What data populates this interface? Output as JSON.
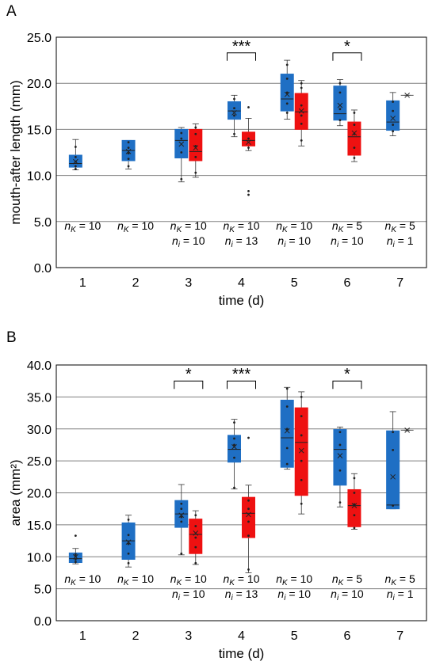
{
  "colors": {
    "blue": "#1f6fc4",
    "red": "#ee1111",
    "grid": "#7f7f7f",
    "frame": "#000000"
  },
  "chart_data": [
    {
      "panel": "A",
      "type": "box",
      "xlabel": "time (d)",
      "ylabel": "mouth-after length (mm)",
      "ylim": [
        0,
        25
      ],
      "yticks": [
        "0.0",
        "5.0",
        "10.0",
        "15.0",
        "20.0",
        "25.0"
      ],
      "categories": [
        "1",
        "2",
        "3",
        "4",
        "5",
        "6",
        "7"
      ],
      "series": [
        {
          "color": "blue",
          "boxes": [
            {
              "x": 1,
              "min": 10.6,
              "q1": 10.9,
              "median": 11.3,
              "mean": 11.5,
              "q3": 12.2,
              "max": 13.9,
              "points": [
                10.7,
                11.0,
                11.5,
                12.0,
                13.1
              ]
            },
            {
              "x": 2,
              "min": 10.7,
              "q1": 11.6,
              "median": 12.7,
              "mean": 12.6,
              "q3": 13.8,
              "max": 13.8,
              "points": [
                11.0,
                11.8,
                12.4,
                13.0,
                13.6
              ]
            },
            {
              "x": 3,
              "min": 9.3,
              "q1": 11.9,
              "median": 13.8,
              "mean": 13.4,
              "q3": 15.0,
              "max": 15.2,
              "points": [
                9.6,
                12.5,
                14.0,
                14.6
              ]
            },
            {
              "x": 4,
              "min": 14.2,
              "q1": 16.1,
              "median": 17.0,
              "mean": 16.8,
              "q3": 18.0,
              "max": 18.7,
              "points": [
                14.5,
                16.5,
                17.3,
                18.3
              ]
            },
            {
              "x": 5,
              "min": 16.1,
              "q1": 17.0,
              "median": 18.3,
              "mean": 18.8,
              "q3": 21.0,
              "max": 22.5,
              "points": [
                16.8,
                17.8,
                19.0,
                20.5,
                22.0
              ]
            },
            {
              "x": 6,
              "min": 15.4,
              "q1": 16.0,
              "median": 16.7,
              "mean": 17.6,
              "q3": 19.7,
              "max": 20.4,
              "points": [
                16.0,
                17.2,
                19.0,
                20.0
              ]
            },
            {
              "x": 7,
              "min": 14.3,
              "q1": 14.9,
              "median": 15.8,
              "mean": 16.2,
              "q3": 18.1,
              "max": 19.0,
              "points": [
                14.8,
                15.5,
                17.0,
                18.0
              ]
            }
          ]
        },
        {
          "color": "red",
          "boxes": [
            {
              "x": 3,
              "min": 9.8,
              "q1": 11.6,
              "median": 12.6,
              "mean": 13.0,
              "q3": 15.0,
              "max": 15.6,
              "points": [
                10.3,
                12.0,
                13.2,
                14.5,
                15.2
              ]
            },
            {
              "x": 4,
              "min": 12.7,
              "q1": 13.2,
              "median": 13.8,
              "mean": 13.6,
              "q3": 14.7,
              "max": 16.2,
              "points": [
                7.9,
                8.3,
                13.0,
                14.0,
                17.4
              ]
            },
            {
              "x": 5,
              "min": 13.2,
              "q1": 15.0,
              "median": 16.9,
              "mean": 17.0,
              "q3": 18.9,
              "max": 20.3,
              "points": [
                13.8,
                15.6,
                16.5,
                17.6,
                19.5,
                20.0
              ]
            },
            {
              "x": 6,
              "min": 11.5,
              "q1": 12.2,
              "median": 14.2,
              "mean": 14.6,
              "q3": 15.8,
              "max": 17.1,
              "points": [
                11.9,
                13.0,
                14.5,
                15.5,
                16.8
              ]
            },
            {
              "x": 7,
              "min": 18.7,
              "q1": 18.7,
              "median": 18.7,
              "mean": 18.7,
              "q3": 18.7,
              "max": 18.7,
              "points": []
            }
          ]
        }
      ],
      "n_labels": [
        {
          "x": 1,
          "k": "10",
          "i": ""
        },
        {
          "x": 2,
          "k": "10",
          "i": ""
        },
        {
          "x": 3,
          "k": "10",
          "i": "10"
        },
        {
          "x": 4,
          "k": "10",
          "i": "13"
        },
        {
          "x": 5,
          "k": "10",
          "i": "10"
        },
        {
          "x": 6,
          "k": " 5",
          "i": "10"
        },
        {
          "x": 7,
          "k": " 5",
          "i": " 1"
        }
      ],
      "significance": [
        {
          "x": 4,
          "label": "***",
          "y": 23.3
        },
        {
          "x": 6,
          "label": "*",
          "y": 23.3
        }
      ]
    },
    {
      "panel": "B",
      "type": "box",
      "xlabel": "time (d)",
      "ylabel": "area (mm²)",
      "ylim": [
        0,
        40
      ],
      "yticks": [
        "0.0",
        "5.0",
        "10.0",
        "15.0",
        "20.0",
        "25.0",
        "30.0",
        "35.0",
        "40.0"
      ],
      "categories": [
        "1",
        "2",
        "3",
        "4",
        "5",
        "6",
        "7"
      ],
      "series": [
        {
          "color": "blue",
          "boxes": [
            {
              "x": 1,
              "min": 8.9,
              "q1": 9.1,
              "median": 9.7,
              "mean": 10.0,
              "q3": 10.6,
              "max": 11.3,
              "points": [
                9.2,
                9.6,
                10.1,
                10.4,
                13.3
              ]
            },
            {
              "x": 2,
              "min": 8.4,
              "q1": 9.6,
              "median": 12.5,
              "mean": 12.3,
              "q3": 15.3,
              "max": 16.5,
              "points": [
                9.0,
                10.5,
                12.0,
                13.4,
                15.8
              ]
            },
            {
              "x": 3,
              "min": 10.3,
              "q1": 14.6,
              "median": 16.7,
              "mean": 16.5,
              "q3": 18.8,
              "max": 21.3,
              "points": [
                10.5,
                15.5,
                16.2,
                17.5,
                18.3
              ]
            },
            {
              "x": 4,
              "min": 20.6,
              "q1": 24.8,
              "median": 26.8,
              "mean": 27.2,
              "q3": 29.0,
              "max": 31.5,
              "points": [
                20.8,
                25.5,
                27.5,
                28.5,
                31.0
              ]
            },
            {
              "x": 5,
              "min": 23.7,
              "q1": 24.0,
              "median": 28.6,
              "mean": 29.7,
              "q3": 34.5,
              "max": 36.5,
              "points": [
                24.5,
                27.0,
                30.0,
                33.5,
                36.3
              ]
            },
            {
              "x": 6,
              "min": 17.8,
              "q1": 21.2,
              "median": 26.8,
              "mean": 25.8,
              "q3": 29.9,
              "max": 30.3,
              "points": [
                18.5,
                23.5,
                27.5,
                29.5
              ]
            },
            {
              "x": 7,
              "min": 17.5,
              "q1": 17.5,
              "median": 18.1,
              "mean": 22.5,
              "q3": 29.7,
              "max": 32.7,
              "points": [
                18.0,
                26.7,
                29.5
              ]
            }
          ]
        },
        {
          "color": "red",
          "boxes": [
            {
              "x": 3,
              "min": 8.8,
              "q1": 10.5,
              "median": 13.5,
              "mean": 13.7,
              "q3": 15.9,
              "max": 17.2,
              "points": [
                9.0,
                11.5,
                13.0,
                14.8,
                16.5
              ]
            },
            {
              "x": 4,
              "min": 7.5,
              "q1": 13.0,
              "median": 16.8,
              "mean": 16.6,
              "q3": 19.3,
              "max": 21.2,
              "points": [
                8.0,
                13.3,
                15.5,
                17.5,
                18.8,
                28.6
              ]
            },
            {
              "x": 5,
              "min": 16.7,
              "q1": 19.6,
              "median": 27.9,
              "mean": 26.6,
              "q3": 33.3,
              "max": 35.8,
              "points": [
                18.3,
                22.0,
                25.0,
                29.0,
                32.0,
                35.0
              ]
            },
            {
              "x": 6,
              "min": 14.3,
              "q1": 14.7,
              "median": 18.0,
              "mean": 18.0,
              "q3": 20.5,
              "max": 23.0,
              "points": [
                14.5,
                16.5,
                18.2,
                20.0,
                22.3
              ]
            },
            {
              "x": 7,
              "min": 29.8,
              "q1": 29.8,
              "median": 29.8,
              "mean": 29.8,
              "q3": 29.8,
              "max": 29.8,
              "points": []
            }
          ]
        }
      ],
      "n_labels": [
        {
          "x": 1,
          "k": "10",
          "i": ""
        },
        {
          "x": 2,
          "k": "10",
          "i": ""
        },
        {
          "x": 3,
          "k": "10",
          "i": "10"
        },
        {
          "x": 4,
          "k": "10",
          "i": "13"
        },
        {
          "x": 5,
          "k": "10",
          "i": "10"
        },
        {
          "x": 6,
          "k": " 5",
          "i": "10"
        },
        {
          "x": 7,
          "k": " 5",
          "i": " 1"
        }
      ],
      "significance": [
        {
          "x": 3,
          "label": "*",
          "y": 37.5
        },
        {
          "x": 4,
          "label": "***",
          "y": 37.5
        },
        {
          "x": 6,
          "label": "*",
          "y": 37.5
        }
      ]
    }
  ]
}
